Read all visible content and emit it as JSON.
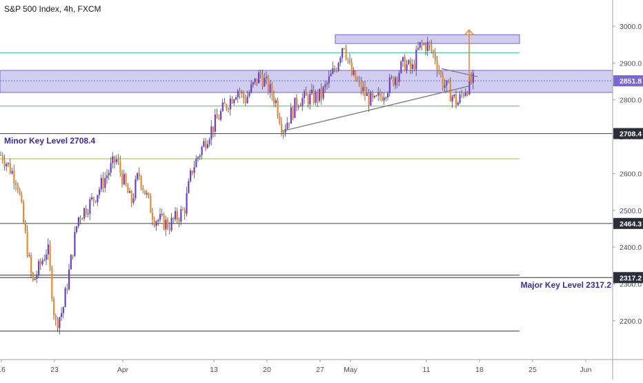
{
  "header": {
    "symbol_title": "S&P 500 Index, 4h, FXCM"
  },
  "colors": {
    "bull": "#6a3fd0",
    "bear": "#f0882c",
    "zone_fill": "#b9b2e8",
    "zone_stroke": "#7465c9",
    "teal_line": "#2bbfae",
    "green_line": "#3ec93e",
    "lime_line": "#8bc34a",
    "level_line": "#555555",
    "trendline": "#787878",
    "projection": "#f0882c",
    "price_tag": "#2a2e39",
    "current_tag": "#7b68d8",
    "key_label": "#3c2a9e"
  },
  "chart_data": {
    "type": "candlestick",
    "title": "S&P 500 Index, 4h, FXCM",
    "xlabel": "",
    "ylabel": "",
    "ylim": [
      2125,
      3075
    ],
    "x_ticks": [
      "16",
      "23",
      "Apr",
      "13",
      "20",
      "27",
      "May",
      "11",
      "18",
      "25",
      "Jun"
    ],
    "y_ticks": [
      2200,
      2300,
      2400,
      2500,
      2600,
      2700,
      2800,
      2900,
      3000
    ],
    "y_tick_labels": [
      "2200.0",
      "2300.0",
      "2400.0",
      "2500.0",
      "2600.0",
      "2700.0",
      "2800.0",
      "2900.0",
      "3000.0"
    ],
    "grid": false,
    "key_levels": [
      {
        "value": 2708.4,
        "tag": "2708.4",
        "label": "Minor Key Level 2708.4"
      },
      {
        "value": 2464.3,
        "tag": "2464.3",
        "label": ""
      },
      {
        "value": 2317.2,
        "tag": "2317.2",
        "label": "Major Key Level 2317.2"
      }
    ],
    "current_price": {
      "value": 2851.8,
      "tag": "2851.8"
    },
    "horizontal_lines": [
      {
        "value": 2928,
        "style": "teal"
      },
      {
        "value": 2783,
        "style": "green"
      },
      {
        "value": 2640,
        "style": "lime"
      },
      {
        "value": 2172,
        "style": "level"
      },
      {
        "value": 2324,
        "style": "level"
      }
    ],
    "zones": [
      {
        "from": 2820,
        "to": 2880,
        "span": "full"
      },
      {
        "from": 2953,
        "to": 2977,
        "span": "from 29 Apr to 23 May"
      }
    ],
    "trendlines": [
      {
        "from": [
          "Apr 22",
          2715
        ],
        "to": [
          "May 16",
          2838
        ]
      },
      {
        "from": [
          "May 13",
          2885
        ],
        "to": [
          "May 17",
          2863
        ]
      }
    ],
    "projection": {
      "date": "May 17",
      "from": 2850,
      "to": 2990
    },
    "ohlc_path": [
      [
        "Mar 16",
        2650
      ],
      [
        "Mar 18",
        2580
      ],
      [
        "Mar 20",
        2300
      ],
      [
        "Mar 22",
        2400
      ],
      [
        "Mar 23",
        2190
      ],
      [
        "Mar 24",
        2230
      ],
      [
        "Mar 26",
        2480
      ],
      [
        "Mar 28",
        2530
      ],
      [
        "Mar 31",
        2640
      ],
      [
        "Apr 2",
        2520
      ],
      [
        "Apr 3",
        2600
      ],
      [
        "Apr 5",
        2480
      ],
      [
        "Apr 7",
        2460
      ],
      [
        "Apr 9",
        2500
      ],
      [
        "Apr 10",
        2610
      ],
      [
        "Apr 12",
        2700
      ],
      [
        "Apr 14",
        2770
      ],
      [
        "Apr 16",
        2830
      ],
      [
        "Apr 17",
        2800
      ],
      [
        "Apr 19",
        2870
      ],
      [
        "Apr 21",
        2800
      ],
      [
        "Apr 22",
        2720
      ],
      [
        "Apr 24",
        2800
      ],
      [
        "Apr 27",
        2810
      ],
      [
        "Apr 29",
        2890
      ],
      [
        "Apr 30",
        2960
      ],
      [
        "May 1",
        2870
      ],
      [
        "May 3",
        2810
      ],
      [
        "May 4",
        2790
      ],
      [
        "May 6",
        2840
      ],
      [
        "May 8",
        2900
      ],
      [
        "May 9",
        2880
      ],
      [
        "May 10",
        2945
      ],
      [
        "May 11",
        2950
      ],
      [
        "May 12",
        2920
      ],
      [
        "May 13",
        2850
      ],
      [
        "May 14",
        2820
      ],
      [
        "May 15",
        2790
      ],
      [
        "May 16",
        2830
      ],
      [
        "May 17",
        2851
      ]
    ]
  }
}
